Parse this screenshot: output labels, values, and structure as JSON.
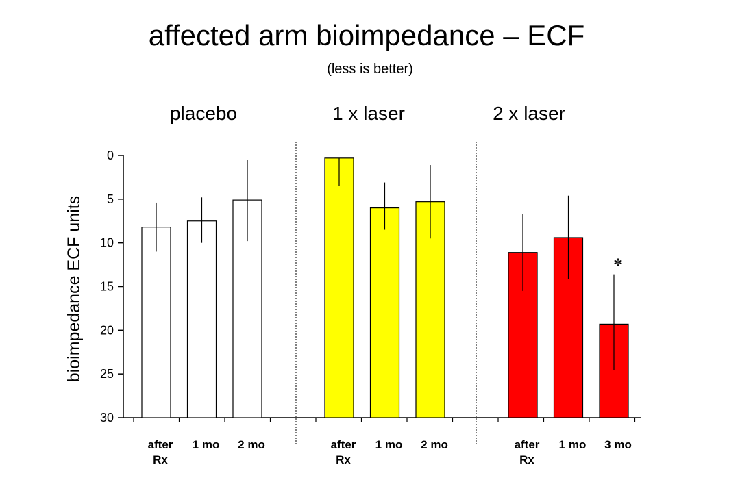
{
  "title": "affected arm bioimpedance – ECF",
  "subtitle": "(less is better)",
  "chart_data": {
    "type": "bar",
    "ylabel": "bioimpedance ECF units",
    "ylim": [
      0,
      30
    ],
    "y_inverted": true,
    "yticks": [
      "0",
      "5",
      "10",
      "15",
      "20",
      "25",
      "30"
    ],
    "grid": false,
    "groups": [
      {
        "name": "placebo",
        "color": "#ffffff",
        "bars": [
          {
            "label": [
              "after",
              "Rx"
            ],
            "value": 8.2,
            "err_low": 5.4,
            "err_high": 11.0
          },
          {
            "label": [
              "1 mo"
            ],
            "value": 7.5,
            "err_low": 4.8,
            "err_high": 10.0
          },
          {
            "label": [
              "2 mo"
            ],
            "value": 5.1,
            "err_low": 0.5,
            "err_high": 9.8
          }
        ]
      },
      {
        "name": "1 x laser",
        "color": "#ffff00",
        "bars": [
          {
            "label": [
              "after",
              "Rx"
            ],
            "value": 0.3,
            "err_low": 0.3,
            "err_high": 3.5
          },
          {
            "label": [
              "1 mo"
            ],
            "value": 6.0,
            "err_low": 3.1,
            "err_high": 8.5
          },
          {
            "label": [
              "2 mo"
            ],
            "value": 5.3,
            "err_low": 1.1,
            "err_high": 9.5
          }
        ]
      },
      {
        "name": "2 x laser",
        "color": "#ff0000",
        "bars": [
          {
            "label": [
              "after",
              "Rx"
            ],
            "value": 11.1,
            "err_low": 6.7,
            "err_high": 15.5
          },
          {
            "label": [
              "1 mo"
            ],
            "value": 9.4,
            "err_low": 4.6,
            "err_high": 14.1
          },
          {
            "label": [
              "3 mo"
            ],
            "value": 19.3,
            "err_low": 13.6,
            "err_high": 24.6,
            "annotation": "*"
          }
        ]
      }
    ]
  }
}
